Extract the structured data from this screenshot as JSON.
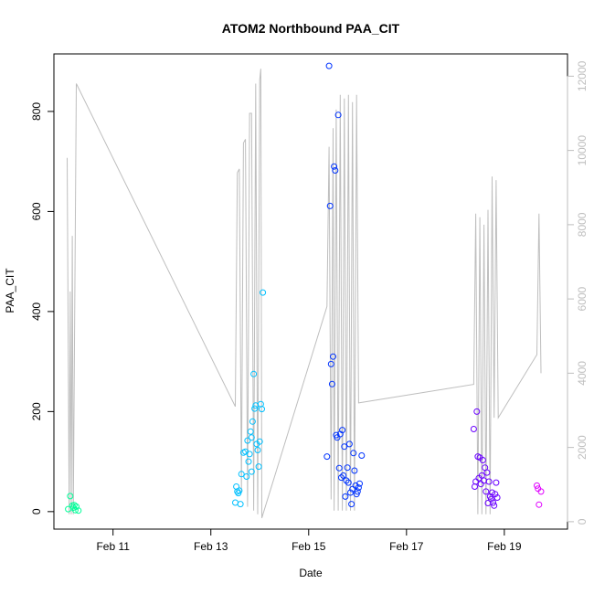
{
  "chart_data": {
    "type": "scatter",
    "title": "ATOM2 Northbound PAA_CIT",
    "xlabel": "Date",
    "ylabel": "PAA_CIT",
    "x_axis": {
      "unit": "date",
      "range": [
        "2024-02-09T19:00",
        "2024-02-20T07:00"
      ],
      "ticks": [
        {
          "value": "2024-02-11",
          "label": "Feb 11"
        },
        {
          "value": "2024-02-13",
          "label": "Feb 13"
        },
        {
          "value": "2024-02-15",
          "label": "Feb 15"
        },
        {
          "value": "2024-02-17",
          "label": "Feb 17"
        },
        {
          "value": "2024-02-19",
          "label": "Feb 19"
        }
      ]
    },
    "y_axis_left": {
      "range": [
        -35,
        915
      ],
      "ticks": [
        0,
        200,
        400,
        600,
        800
      ]
    },
    "y_axis_right": {
      "range": [
        -200,
        12600
      ],
      "ticks": [
        0,
        2000,
        4000,
        6000,
        8000,
        10000,
        12000
      ],
      "color": "#bebebe"
    },
    "grid": false,
    "legend": "none",
    "colors": {
      "line": "#bebebe",
      "axis": "#000000"
    },
    "series": [
      {
        "axis": "left",
        "style": "open-circles",
        "color": "#00ff99",
        "points": [
          [
            "2024-02-10T02:00",
            5
          ],
          [
            "2024-02-10T03:00",
            31
          ],
          [
            "2024-02-10T04:00",
            12
          ],
          [
            "2024-02-10T04:30",
            8
          ],
          [
            "2024-02-10T05:00",
            13
          ],
          [
            "2024-02-10T05:30",
            3
          ],
          [
            "2024-02-10T06:00",
            10
          ],
          [
            "2024-02-10T07:00",
            2
          ]
        ]
      },
      {
        "axis": "left",
        "style": "open-circles",
        "color": "#00c0ff",
        "points": [
          [
            "2024-02-13T12:00",
            18
          ],
          [
            "2024-02-13T12:30",
            50
          ],
          [
            "2024-02-13T13:00",
            40
          ],
          [
            "2024-02-13T13:30",
            37
          ],
          [
            "2024-02-13T14:00",
            42
          ],
          [
            "2024-02-13T14:30",
            15
          ],
          [
            "2024-02-13T15:00",
            75
          ],
          [
            "2024-02-13T16:00",
            118
          ],
          [
            "2024-02-13T17:00",
            120
          ],
          [
            "2024-02-13T17:30",
            70
          ],
          [
            "2024-02-13T18:00",
            142
          ],
          [
            "2024-02-13T18:30",
            100
          ],
          [
            "2024-02-13T19:00",
            115
          ],
          [
            "2024-02-13T19:30",
            160
          ],
          [
            "2024-02-13T20:00",
            148
          ],
          [
            "2024-02-13T20:00",
            80
          ],
          [
            "2024-02-13T20:30",
            180
          ],
          [
            "2024-02-13T21:00",
            275
          ],
          [
            "2024-02-13T21:30",
            206
          ],
          [
            "2024-02-13T22:00",
            212
          ],
          [
            "2024-02-13T22:30",
            135
          ],
          [
            "2024-02-13T23:00",
            123
          ],
          [
            "2024-02-13T23:30",
            90
          ],
          [
            "2024-02-14T00:00",
            140
          ],
          [
            "2024-02-14T00:30",
            215
          ],
          [
            "2024-02-14T01:00",
            205
          ],
          [
            "2024-02-14T01:30",
            438
          ]
        ]
      },
      {
        "axis": "left",
        "style": "open-circles",
        "color": "#0033ff",
        "points": [
          [
            "2024-02-15T09:00",
            110
          ],
          [
            "2024-02-15T10:00",
            891
          ],
          [
            "2024-02-15T10:30",
            611
          ],
          [
            "2024-02-15T11:00",
            295
          ],
          [
            "2024-02-15T11:30",
            255
          ],
          [
            "2024-02-15T12:00",
            310
          ],
          [
            "2024-02-15T12:30",
            690
          ],
          [
            "2024-02-15T13:00",
            682
          ],
          [
            "2024-02-15T13:30",
            153
          ],
          [
            "2024-02-15T14:00",
            148
          ],
          [
            "2024-02-15T14:30",
            793
          ],
          [
            "2024-02-15T15:00",
            87
          ],
          [
            "2024-02-15T15:30",
            155
          ],
          [
            "2024-02-15T16:00",
            68
          ],
          [
            "2024-02-15T16:30",
            163
          ],
          [
            "2024-02-15T17:00",
            72
          ],
          [
            "2024-02-15T17:30",
            130
          ],
          [
            "2024-02-15T18:00",
            30
          ],
          [
            "2024-02-15T18:30",
            62
          ],
          [
            "2024-02-15T19:00",
            88
          ],
          [
            "2024-02-15T19:30",
            58
          ],
          [
            "2024-02-15T20:00",
            135
          ],
          [
            "2024-02-15T20:30",
            38
          ],
          [
            "2024-02-15T21:00",
            15
          ],
          [
            "2024-02-15T21:30",
            45
          ],
          [
            "2024-02-15T22:00",
            117
          ],
          [
            "2024-02-15T22:30",
            82
          ],
          [
            "2024-02-15T23:00",
            52
          ],
          [
            "2024-02-15T23:30",
            35
          ],
          [
            "2024-02-16T00:00",
            40
          ],
          [
            "2024-02-16T00:30",
            48
          ],
          [
            "2024-02-16T01:00",
            56
          ],
          [
            "2024-02-16T02:00",
            112
          ]
        ]
      },
      {
        "axis": "left",
        "style": "open-circles",
        "color": "#6a00ff",
        "points": [
          [
            "2024-02-18T09:00",
            165
          ],
          [
            "2024-02-18T09:30",
            50
          ],
          [
            "2024-02-18T10:00",
            60
          ],
          [
            "2024-02-18T10:30",
            200
          ],
          [
            "2024-02-18T11:00",
            110
          ],
          [
            "2024-02-18T11:30",
            67
          ],
          [
            "2024-02-18T12:00",
            108
          ],
          [
            "2024-02-18T12:30",
            55
          ],
          [
            "2024-02-18T13:00",
            72
          ],
          [
            "2024-02-18T13:30",
            103
          ],
          [
            "2024-02-18T14:00",
            62
          ],
          [
            "2024-02-18T14:30",
            88
          ],
          [
            "2024-02-18T15:00",
            40
          ],
          [
            "2024-02-18T15:30",
            78
          ],
          [
            "2024-02-18T16:00",
            17
          ],
          [
            "2024-02-18T16:30",
            60
          ],
          [
            "2024-02-18T17:00",
            30
          ],
          [
            "2024-02-18T17:30",
            25
          ],
          [
            "2024-02-18T18:00",
            38
          ],
          [
            "2024-02-18T18:30",
            18
          ],
          [
            "2024-02-18T19:00",
            12
          ],
          [
            "2024-02-18T19:30",
            35
          ],
          [
            "2024-02-18T20:00",
            58
          ],
          [
            "2024-02-18T20:30",
            28
          ]
        ]
      },
      {
        "axis": "left",
        "style": "open-circles",
        "color": "#e000ff",
        "points": [
          [
            "2024-02-19T16:00",
            52
          ],
          [
            "2024-02-19T16:30",
            46
          ],
          [
            "2024-02-19T17:00",
            14
          ],
          [
            "2024-02-19T18:00",
            40
          ]
        ]
      },
      {
        "axis": "right",
        "style": "line",
        "color": "#bebebe",
        "points": [
          [
            "2024-02-10T01:30",
            9800
          ],
          [
            "2024-02-10T02:30",
            200
          ],
          [
            "2024-02-10T03:00",
            6200
          ],
          [
            "2024-02-10T03:30",
            200
          ],
          [
            "2024-02-10T04:00",
            7700
          ],
          [
            "2024-02-10T04:30",
            200
          ],
          [
            "2024-02-10T06:00",
            11800
          ],
          [
            "2024-02-13T12:00",
            3100
          ],
          [
            "2024-02-13T13:00",
            9400
          ],
          [
            "2024-02-13T14:00",
            9500
          ],
          [
            "2024-02-13T15:00",
            800
          ],
          [
            "2024-02-13T16:00",
            10200
          ],
          [
            "2024-02-13T17:00",
            10300
          ],
          [
            "2024-02-13T18:00",
            400
          ],
          [
            "2024-02-13T19:00",
            11000
          ],
          [
            "2024-02-13T20:00",
            11000
          ],
          [
            "2024-02-13T21:00",
            300
          ],
          [
            "2024-02-13T22:00",
            11800
          ],
          [
            "2024-02-13T23:00",
            200
          ],
          [
            "2024-02-14T00:00",
            11900
          ],
          [
            "2024-02-14T00:30",
            12200
          ],
          [
            "2024-02-14T01:00",
            100
          ],
          [
            "2024-02-15T09:00",
            5800
          ],
          [
            "2024-02-15T10:00",
            10100
          ],
          [
            "2024-02-15T11:00",
            600
          ],
          [
            "2024-02-15T12:00",
            10600
          ],
          [
            "2024-02-15T12:30",
            300
          ],
          [
            "2024-02-15T13:30",
            11100
          ],
          [
            "2024-02-15T14:30",
            300
          ],
          [
            "2024-02-15T15:30",
            11500
          ],
          [
            "2024-02-15T16:30",
            300
          ],
          [
            "2024-02-15T17:30",
            11400
          ],
          [
            "2024-02-15T18:30",
            300
          ],
          [
            "2024-02-15T19:30",
            11500
          ],
          [
            "2024-02-15T20:30",
            300
          ],
          [
            "2024-02-15T21:30",
            11300
          ],
          [
            "2024-02-15T22:30",
            300
          ],
          [
            "2024-02-15T23:30",
            11500
          ],
          [
            "2024-02-16T00:30",
            3200
          ],
          [
            "2024-02-18T09:00",
            3700
          ],
          [
            "2024-02-18T10:00",
            8300
          ],
          [
            "2024-02-18T11:00",
            200
          ],
          [
            "2024-02-18T12:00",
            8200
          ],
          [
            "2024-02-18T13:00",
            200
          ],
          [
            "2024-02-18T14:00",
            8000
          ],
          [
            "2024-02-18T15:00",
            200
          ],
          [
            "2024-02-18T16:00",
            8400
          ],
          [
            "2024-02-18T17:00",
            200
          ],
          [
            "2024-02-18T18:00",
            9300
          ],
          [
            "2024-02-18T19:00",
            2800
          ],
          [
            "2024-02-18T20:00",
            9200
          ],
          [
            "2024-02-18T21:00",
            2800
          ],
          [
            "2024-02-19T16:00",
            4500
          ],
          [
            "2024-02-19T17:00",
            8300
          ],
          [
            "2024-02-19T18:00",
            4000
          ]
        ]
      }
    ]
  }
}
